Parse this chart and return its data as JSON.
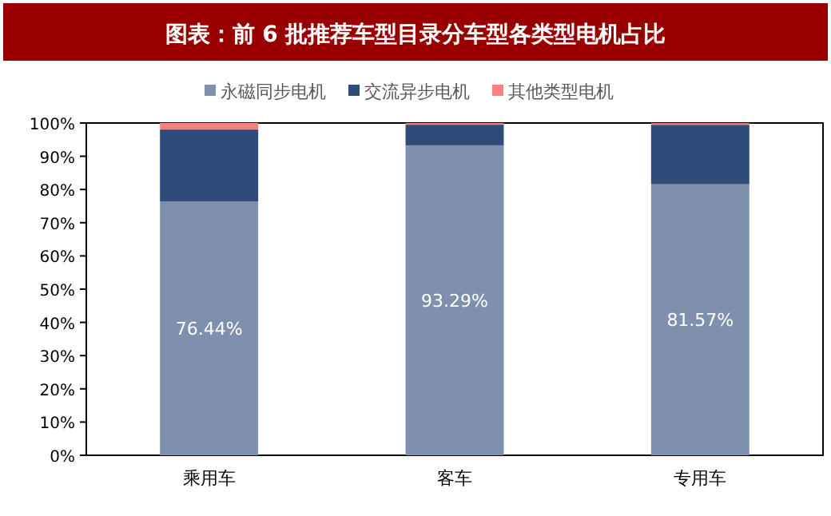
{
  "chart_data": {
    "type": "bar",
    "title": "图表：前 6 批推荐车型目录分车型各类型电机占比",
    "stacked": true,
    "categories": [
      "乘用车",
      "客车",
      "专用车"
    ],
    "series": [
      {
        "name": "永磁同步电机",
        "color": "#7f8fae",
        "values": [
          76.44,
          93.29,
          81.57
        ],
        "value_labels": [
          "76.44%",
          "93.29%",
          "81.57%"
        ]
      },
      {
        "name": "交流异步电机",
        "color": "#2f4b7a",
        "values": [
          21.6,
          6.2,
          17.9
        ]
      },
      {
        "name": "其他类型电机",
        "color": "#ff7f7f",
        "values": [
          2.0,
          0.5,
          0.5
        ]
      }
    ],
    "ylim": [
      0,
      100
    ],
    "yticks": [
      {
        "value": 0,
        "label": "0%"
      },
      {
        "value": 10,
        "label": "10%"
      },
      {
        "value": 20,
        "label": "20%"
      },
      {
        "value": 30,
        "label": "30%"
      },
      {
        "value": 40,
        "label": "40%"
      },
      {
        "value": 50,
        "label": "50%"
      },
      {
        "value": 60,
        "label": "60%"
      },
      {
        "value": 70,
        "label": "70%"
      },
      {
        "value": 80,
        "label": "80%"
      },
      {
        "value": 90,
        "label": "90%"
      },
      {
        "value": 100,
        "label": "100%"
      }
    ],
    "grid": false,
    "legend": "top"
  }
}
